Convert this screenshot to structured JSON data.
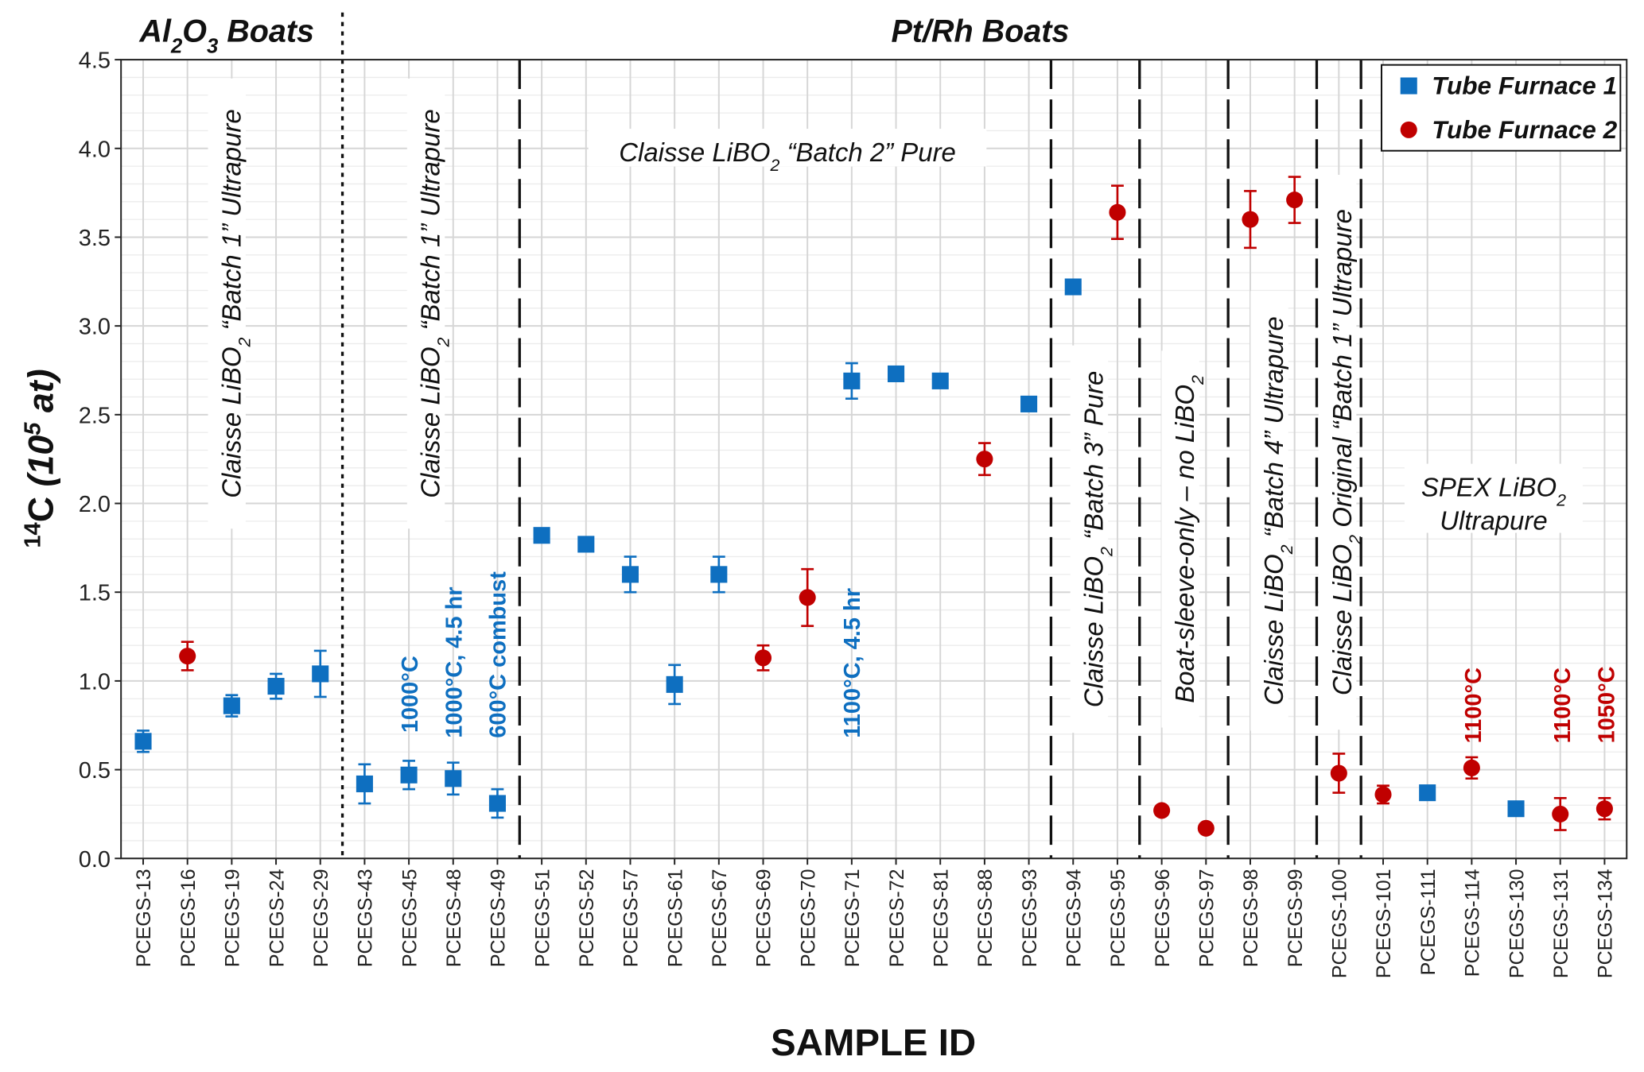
{
  "chart_data": {
    "type": "scatter",
    "xlabel": "SAMPLE ID",
    "ylabel": {
      "pre": "14",
      "mid": "C ",
      "paren": "(10",
      "sup": "5",
      "post": " at)"
    },
    "ylim": [
      0,
      4.5
    ],
    "yticks": [
      "0.0",
      "0.5",
      "1.0",
      "1.5",
      "2.0",
      "2.5",
      "3.0",
      "3.5",
      "4.0",
      "4.5"
    ],
    "grid": true,
    "legend_placement": "top-right",
    "colors": {
      "tf1": "#0e6fc0",
      "tf2": "#c00000"
    },
    "series": [
      {
        "name": "Tube Furnace 1",
        "key": "tf1",
        "marker": "square"
      },
      {
        "name": "Tube Furnace 2",
        "key": "tf2",
        "marker": "circle"
      }
    ],
    "categories": [
      "PCEGS-13",
      "PCEGS-16",
      "PCEGS-19",
      "PCEGS-24",
      "PCEGS-29",
      "PCEGS-43",
      "PCEGS-45",
      "PCEGS-48",
      "PCEGS-49",
      "PCEGS-51",
      "PCEGS-52",
      "PCEGS-57",
      "PCEGS-61",
      "PCEGS-67",
      "PCEGS-69",
      "PCEGS-70",
      "PCEGS-71",
      "PCEGS-72",
      "PCEGS-81",
      "PCEGS-88",
      "PCEGS-93",
      "PCEGS-94",
      "PCEGS-95",
      "PCEGS-96",
      "PCEGS-97",
      "PCEGS-98",
      "PCEGS-99",
      "PCEGS-100",
      "PCEGS-101",
      "PCEGS-111",
      "PCEGS-114",
      "PCEGS-130",
      "PCEGS-131",
      "PCEGS-134"
    ],
    "points": [
      {
        "s": "tf1",
        "v": 0.66,
        "e": 0.06
      },
      {
        "s": "tf2",
        "v": 1.14,
        "e": 0.08
      },
      {
        "s": "tf1",
        "v": 0.86,
        "e": 0.06
      },
      {
        "s": "tf1",
        "v": 0.97,
        "e": 0.07
      },
      {
        "s": "tf1",
        "v": 1.04,
        "e": 0.13
      },
      {
        "s": "tf1",
        "v": 0.42,
        "e": 0.11
      },
      {
        "s": "tf1",
        "v": 0.47,
        "e": 0.08
      },
      {
        "s": "tf1",
        "v": 0.45,
        "e": 0.09
      },
      {
        "s": "tf1",
        "v": 0.31,
        "e": 0.08
      },
      {
        "s": "tf1",
        "v": 1.82,
        "e": 0
      },
      {
        "s": "tf1",
        "v": 1.77,
        "e": 0
      },
      {
        "s": "tf1",
        "v": 1.6,
        "e": 0.1
      },
      {
        "s": "tf1",
        "v": 0.98,
        "e": 0.11
      },
      {
        "s": "tf1",
        "v": 1.6,
        "e": 0.1
      },
      {
        "s": "tf2",
        "v": 1.13,
        "e": 0.07
      },
      {
        "s": "tf2",
        "v": 1.47,
        "e": 0.16
      },
      {
        "s": "tf1",
        "v": 2.69,
        "e": 0.1
      },
      {
        "s": "tf1",
        "v": 2.73,
        "e": 0
      },
      {
        "s": "tf1",
        "v": 2.69,
        "e": 0
      },
      {
        "s": "tf2",
        "v": 2.25,
        "e": 0.09
      },
      {
        "s": "tf1",
        "v": 2.56,
        "e": 0
      },
      {
        "s": "tf1",
        "v": 3.22,
        "e": 0
      },
      {
        "s": "tf2",
        "v": 3.64,
        "e": 0.15
      },
      {
        "s": "tf2",
        "v": 0.27,
        "e": 0
      },
      {
        "s": "tf2",
        "v": 0.17,
        "e": 0
      },
      {
        "s": "tf2",
        "v": 3.6,
        "e": 0.16
      },
      {
        "s": "tf2",
        "v": 3.71,
        "e": 0.13
      },
      {
        "s": "tf2",
        "v": 0.48,
        "e": 0.11
      },
      {
        "s": "tf2",
        "v": 0.36,
        "e": 0.05
      },
      {
        "s": "tf1",
        "v": 0.37,
        "e": 0
      },
      {
        "s": "tf2",
        "v": 0.51,
        "e": 0.06
      },
      {
        "s": "tf1",
        "v": 0.28,
        "e": 0
      },
      {
        "s": "tf2",
        "v": 0.25,
        "e": 0.09
      },
      {
        "s": "tf2",
        "v": 0.28,
        "e": 0.06
      }
    ],
    "group_headers": [
      {
        "pre": "Al",
        "sub": "2",
        "mid": "O",
        "sub2": "3",
        "post": " Boats"
      },
      {
        "pre": "Pt/Rh Boats",
        "sub": "",
        "mid": "",
        "sub2": "",
        "post": ""
      }
    ],
    "annotations": [
      {
        "pre": "Claisse LiBO",
        "sub": "2",
        "post": " “Batch 1” Ultrapure"
      },
      {
        "pre": "Claisse LiBO",
        "sub": "2",
        "post": " “Batch 1” Ultrapure"
      },
      {
        "pre": "Claisse LiBO",
        "sub": "2",
        "post": " “Batch 2” Pure"
      },
      {
        "pre": "Claisse LiBO",
        "sub": "2",
        "post": " “Batch 3” Pure"
      },
      {
        "pre": "Boat-sleeve-only – no LiBO",
        "sub": "2",
        "post": ""
      },
      {
        "pre": "Claisse LiBO",
        "sub": "2",
        "post": " “Batch 4” Ultrapure"
      },
      {
        "pre": "Claisse LiBO",
        "sub": "2",
        "post": " Original “Batch 1” Ultrapure"
      },
      {
        "pre": "SPEX LiBO",
        "sub": "2",
        "post": ""
      },
      {
        "pre": "Ultrapure",
        "sub": "",
        "post": ""
      }
    ],
    "temperature_labels": [
      {
        "text": "1000°C",
        "s": "tf1"
      },
      {
        "text": "1000°C, 4.5 hr",
        "s": "tf1"
      },
      {
        "text": "600°C combust",
        "s": "tf1"
      },
      {
        "text": "1100°C, 4.5 hr",
        "s": "tf1"
      },
      {
        "text": "1100°C",
        "s": "tf2"
      },
      {
        "text": "1100°C",
        "s": "tf2"
      },
      {
        "text": "1050°C",
        "s": "tf2"
      }
    ]
  }
}
